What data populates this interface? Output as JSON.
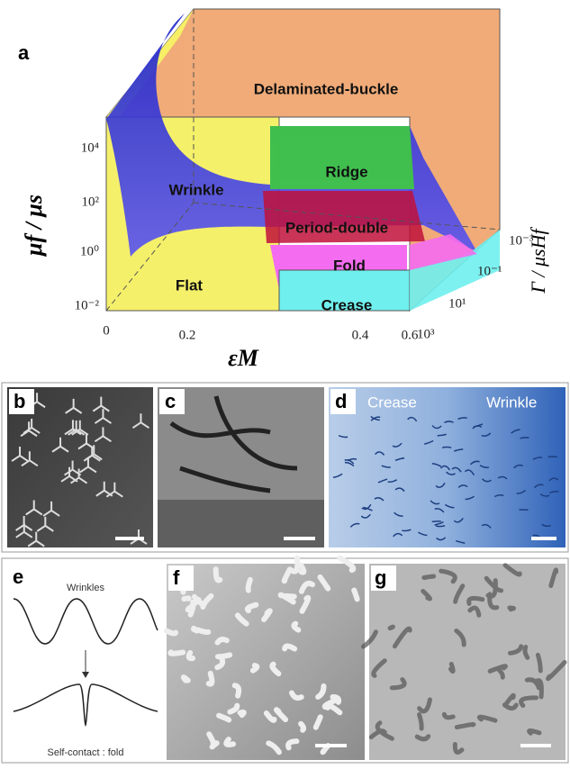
{
  "panel_a": {
    "label": "a",
    "regions": {
      "delaminated": "Delaminated-buckle",
      "ridge": "Ridge",
      "wrinkle": "Wrinkle",
      "period_double": "Period-double",
      "fold": "Fold",
      "flat": "Flat",
      "crease": "Crease"
    },
    "y_axis": {
      "label": "μf / μs",
      "ticks": [
        "10⁴",
        "10²",
        "10⁰",
        "10⁻²"
      ]
    },
    "x_axis": {
      "label": "εM",
      "ticks": [
        "0",
        "0.2",
        "0.4",
        "0.6"
      ]
    },
    "z_axis": {
      "label": "Γ / μsHf",
      "ticks": [
        "10⁻³",
        "10⁻¹",
        "10¹",
        "10³"
      ]
    }
  },
  "panel_b": {
    "label": "b"
  },
  "panel_c": {
    "label": "c"
  },
  "panel_d": {
    "label": "d",
    "left": "Crease",
    "right": "Wrinkle"
  },
  "panel_e": {
    "label": "e",
    "top": "Wrinkles",
    "bottom": "Self-contact : fold"
  },
  "panel_f": {
    "label": "f"
  },
  "panel_g": {
    "label": "g"
  }
}
